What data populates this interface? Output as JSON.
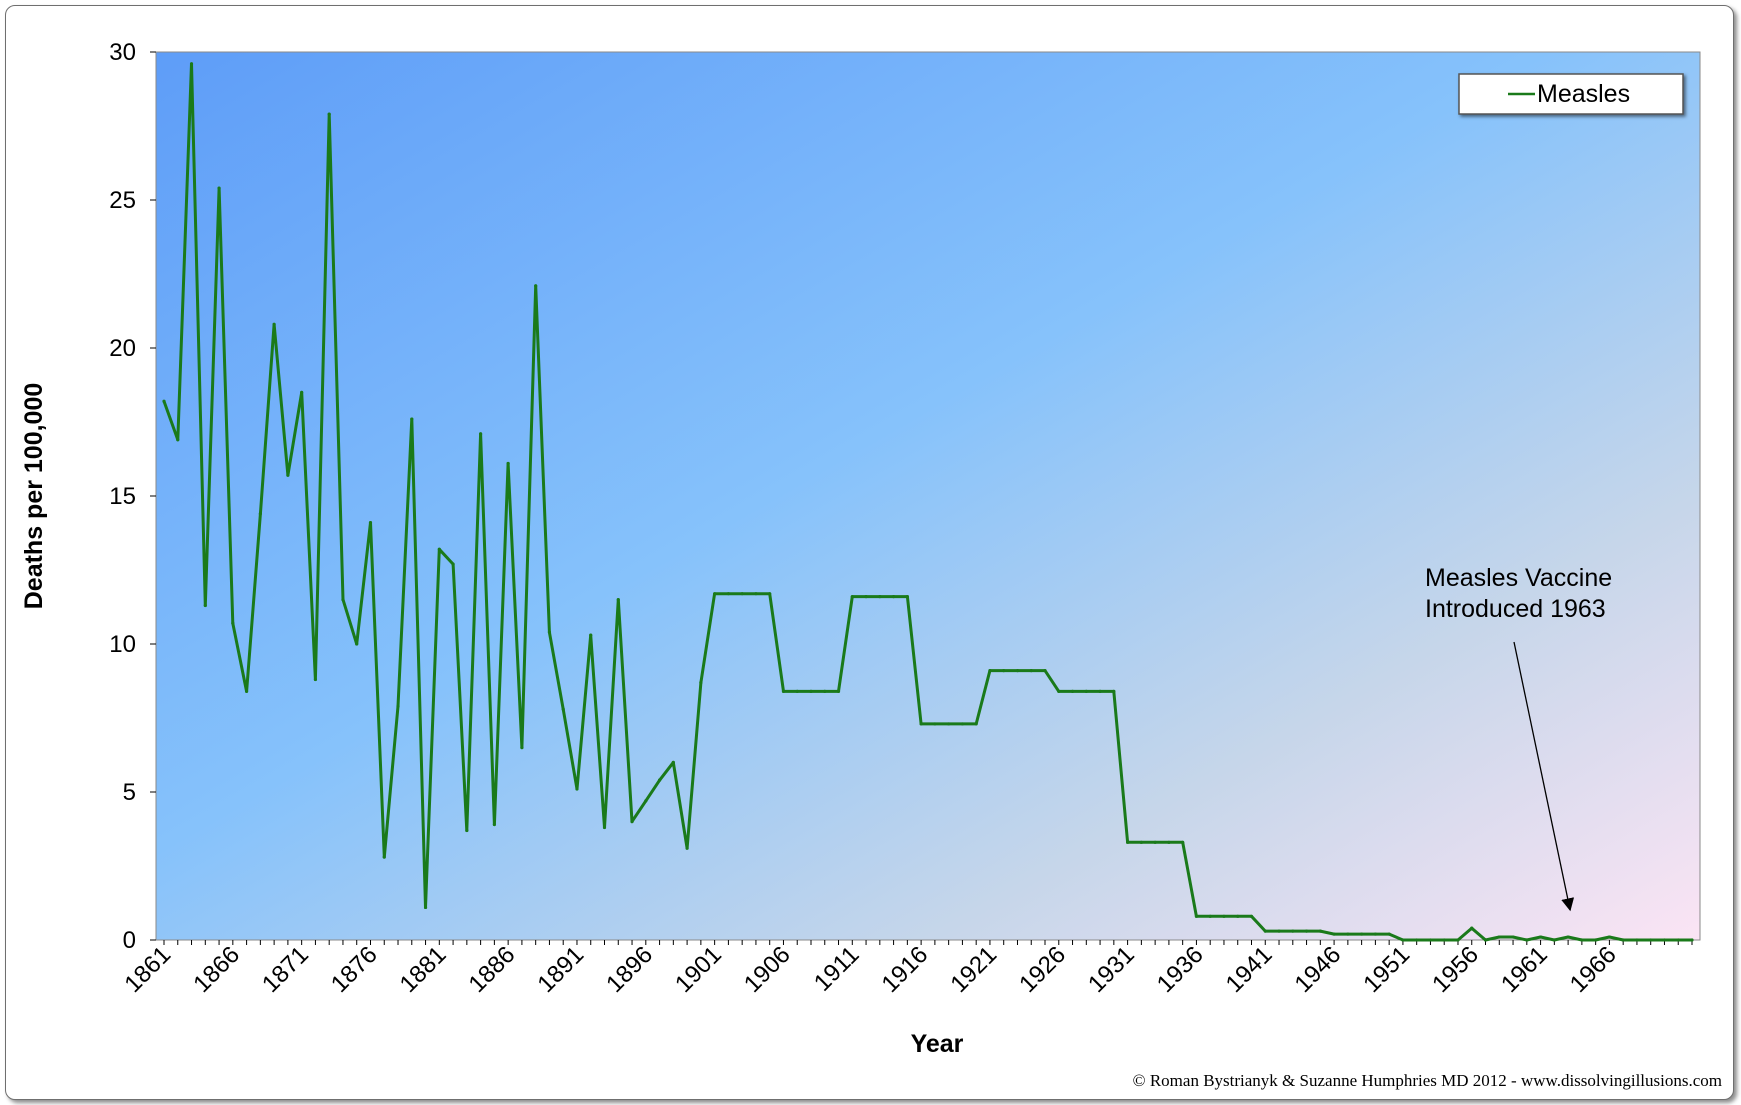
{
  "chart_data": {
    "type": "line",
    "title": "",
    "xlabel": "Year",
    "ylabel": "Deaths per 100,000",
    "ylim": [
      0,
      30
    ],
    "y_ticks": [
      "0",
      "5",
      "10",
      "15",
      "20",
      "25",
      "30"
    ],
    "x_tick_labels": [
      "1861",
      "1866",
      "1871",
      "1876",
      "1881",
      "1886",
      "1891",
      "1896",
      "1901",
      "1906",
      "1911",
      "1916",
      "1921",
      "1926",
      "1931",
      "1936",
      "1941",
      "1946",
      "1951",
      "1956",
      "1961",
      "1966"
    ],
    "legend": {
      "position": "top-right",
      "entries": [
        "Measles"
      ]
    },
    "grid": false,
    "background": "gradient blue to pink",
    "series": [
      {
        "name": "Measles",
        "color": "#1a7a1a",
        "x": [
          1861,
          1862,
          1863,
          1864,
          1865,
          1866,
          1867,
          1868,
          1869,
          1870,
          1871,
          1872,
          1873,
          1874,
          1875,
          1876,
          1877,
          1878,
          1879,
          1880,
          1881,
          1882,
          1883,
          1884,
          1885,
          1886,
          1887,
          1888,
          1889,
          1890,
          1891,
          1892,
          1893,
          1894,
          1895,
          1896,
          1897,
          1898,
          1899,
          1900,
          1901,
          1902,
          1903,
          1904,
          1905,
          1906,
          1907,
          1908,
          1909,
          1910,
          1911,
          1912,
          1913,
          1914,
          1915,
          1916,
          1917,
          1918,
          1919,
          1920,
          1921,
          1922,
          1923,
          1924,
          1925,
          1926,
          1927,
          1928,
          1929,
          1930,
          1931,
          1932,
          1933,
          1934,
          1935,
          1936,
          1937,
          1938,
          1939,
          1940,
          1941,
          1942,
          1943,
          1944,
          1945,
          1946,
          1947,
          1948,
          1949,
          1950,
          1951,
          1952,
          1953,
          1954,
          1955,
          1956,
          1957,
          1958,
          1959,
          1960,
          1961,
          1962,
          1963,
          1964,
          1965,
          1966,
          1967,
          1968,
          1969,
          1970,
          1971,
          1972
        ],
        "values": [
          18.2,
          16.9,
          29.6,
          11.3,
          25.4,
          10.7,
          8.4,
          14.4,
          20.8,
          15.7,
          18.5,
          8.8,
          27.9,
          11.5,
          10.0,
          14.1,
          2.8,
          7.9,
          17.6,
          1.1,
          13.2,
          12.7,
          3.7,
          17.1,
          3.9,
          16.1,
          6.5,
          22.1,
          10.4,
          7.8,
          5.1,
          10.3,
          3.8,
          11.5,
          4.0,
          4.7,
          5.4,
          6.0,
          3.1,
          8.7,
          11.7,
          11.7,
          11.7,
          11.7,
          11.7,
          8.4,
          8.4,
          8.4,
          8.4,
          8.4,
          11.6,
          11.6,
          11.6,
          11.6,
          11.6,
          7.3,
          7.3,
          7.3,
          7.3,
          7.3,
          9.1,
          9.1,
          9.1,
          9.1,
          9.1,
          8.4,
          8.4,
          8.4,
          8.4,
          8.4,
          3.3,
          3.3,
          3.3,
          3.3,
          3.3,
          0.8,
          0.8,
          0.8,
          0.8,
          0.8,
          0.3,
          0.3,
          0.3,
          0.3,
          0.3,
          0.2,
          0.2,
          0.2,
          0.2,
          0.2,
          0.0,
          0.0,
          0.0,
          0.0,
          0.0,
          0.4,
          0.0,
          0.1,
          0.1,
          0.0,
          0.1,
          0.0,
          0.1,
          0.0,
          0.0,
          0.1,
          0.0,
          0.0,
          0.0,
          0.0,
          0.0,
          0.0
        ]
      }
    ],
    "annotations": [
      {
        "lines": [
          "Measles Vaccine",
          "Introduced 1963"
        ],
        "target_year": 1963,
        "target_value": 0
      }
    ],
    "credit": "© Roman Bystrianyk & Suzanne Humphries MD 2012 - www.dissolvingillusions.com"
  }
}
